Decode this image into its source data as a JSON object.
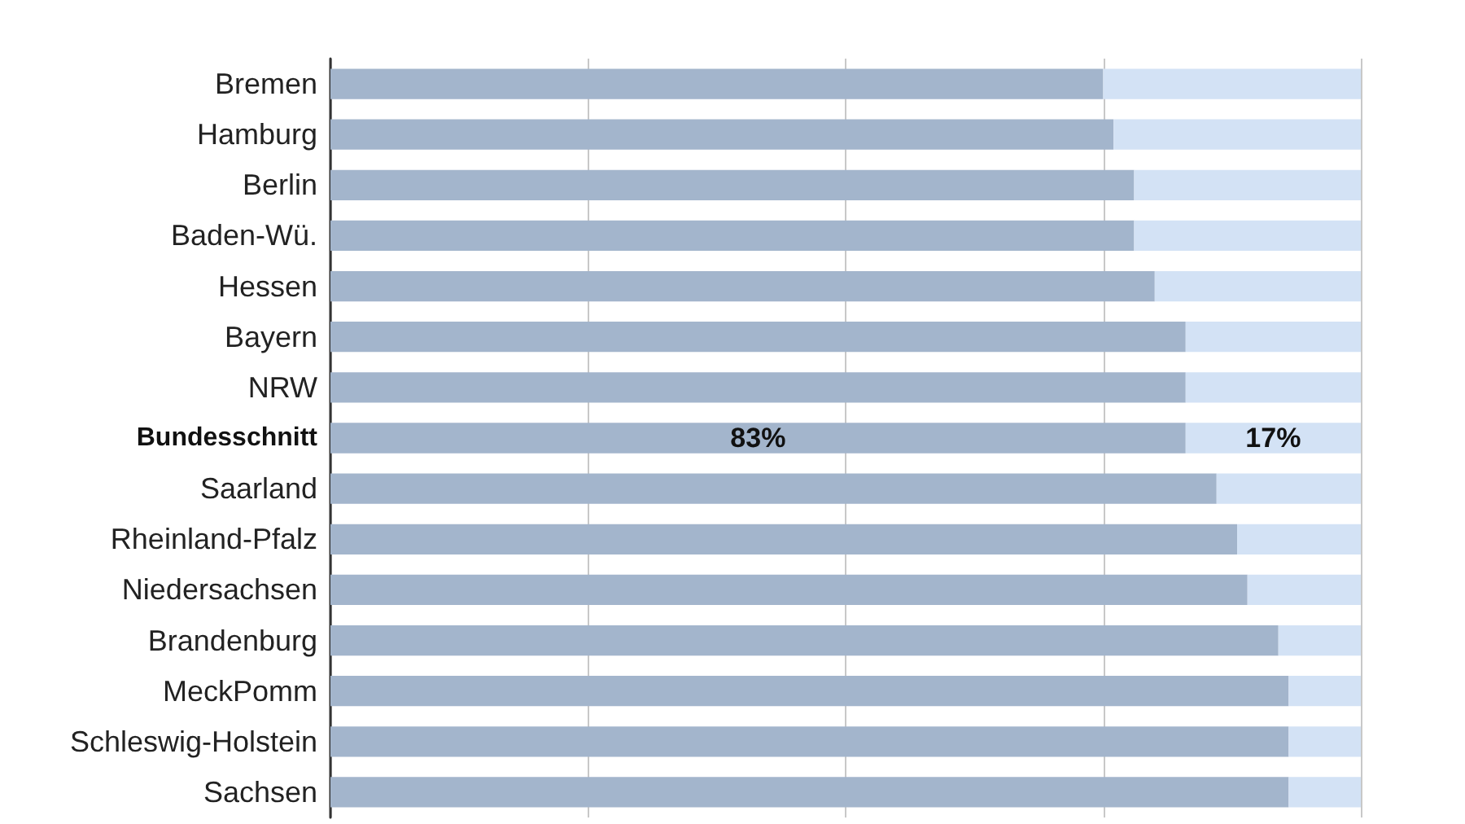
{
  "chart_data": {
    "type": "bar",
    "orientation": "horizontal",
    "stacked": true,
    "categories": [
      "Bremen",
      "Hamburg",
      "Berlin",
      "Baden-Wü.",
      "Hessen",
      "Bayern",
      "NRW",
      "Bundesschnitt",
      "Saarland",
      "Rheinland-Pfalz",
      "Niedersachsen",
      "Brandenburg",
      "MeckPomm",
      "Schleswig-Holstein",
      "Sachsen"
    ],
    "series": [
      {
        "color": "#a3b5cc",
        "values": [
          75,
          76,
          78,
          78,
          80,
          83,
          83,
          83,
          86,
          88,
          89,
          92,
          93,
          93,
          93
        ],
        "value_labels": [
          null,
          null,
          null,
          null,
          null,
          null,
          null,
          "83%",
          null,
          null,
          null,
          null,
          null,
          null,
          null
        ]
      },
      {
        "color": "#d3e2f5",
        "values": [
          25,
          24,
          22,
          22,
          20,
          17,
          17,
          17,
          14,
          12,
          11,
          8,
          7,
          7,
          7
        ],
        "value_labels": [
          null,
          null,
          null,
          null,
          null,
          null,
          null,
          "17%",
          null,
          null,
          null,
          null,
          null,
          null,
          null
        ]
      }
    ],
    "xlim": [
      0,
      100
    ],
    "xticks": [
      {
        "value": 0,
        "label": null
      },
      {
        "value": 25,
        "label": null
      },
      {
        "value": 50,
        "label": null
      },
      {
        "value": 75,
        "label": null
      },
      {
        "value": 100,
        "label": null
      }
    ],
    "grid": "x",
    "tick_labels": "y"
  }
}
